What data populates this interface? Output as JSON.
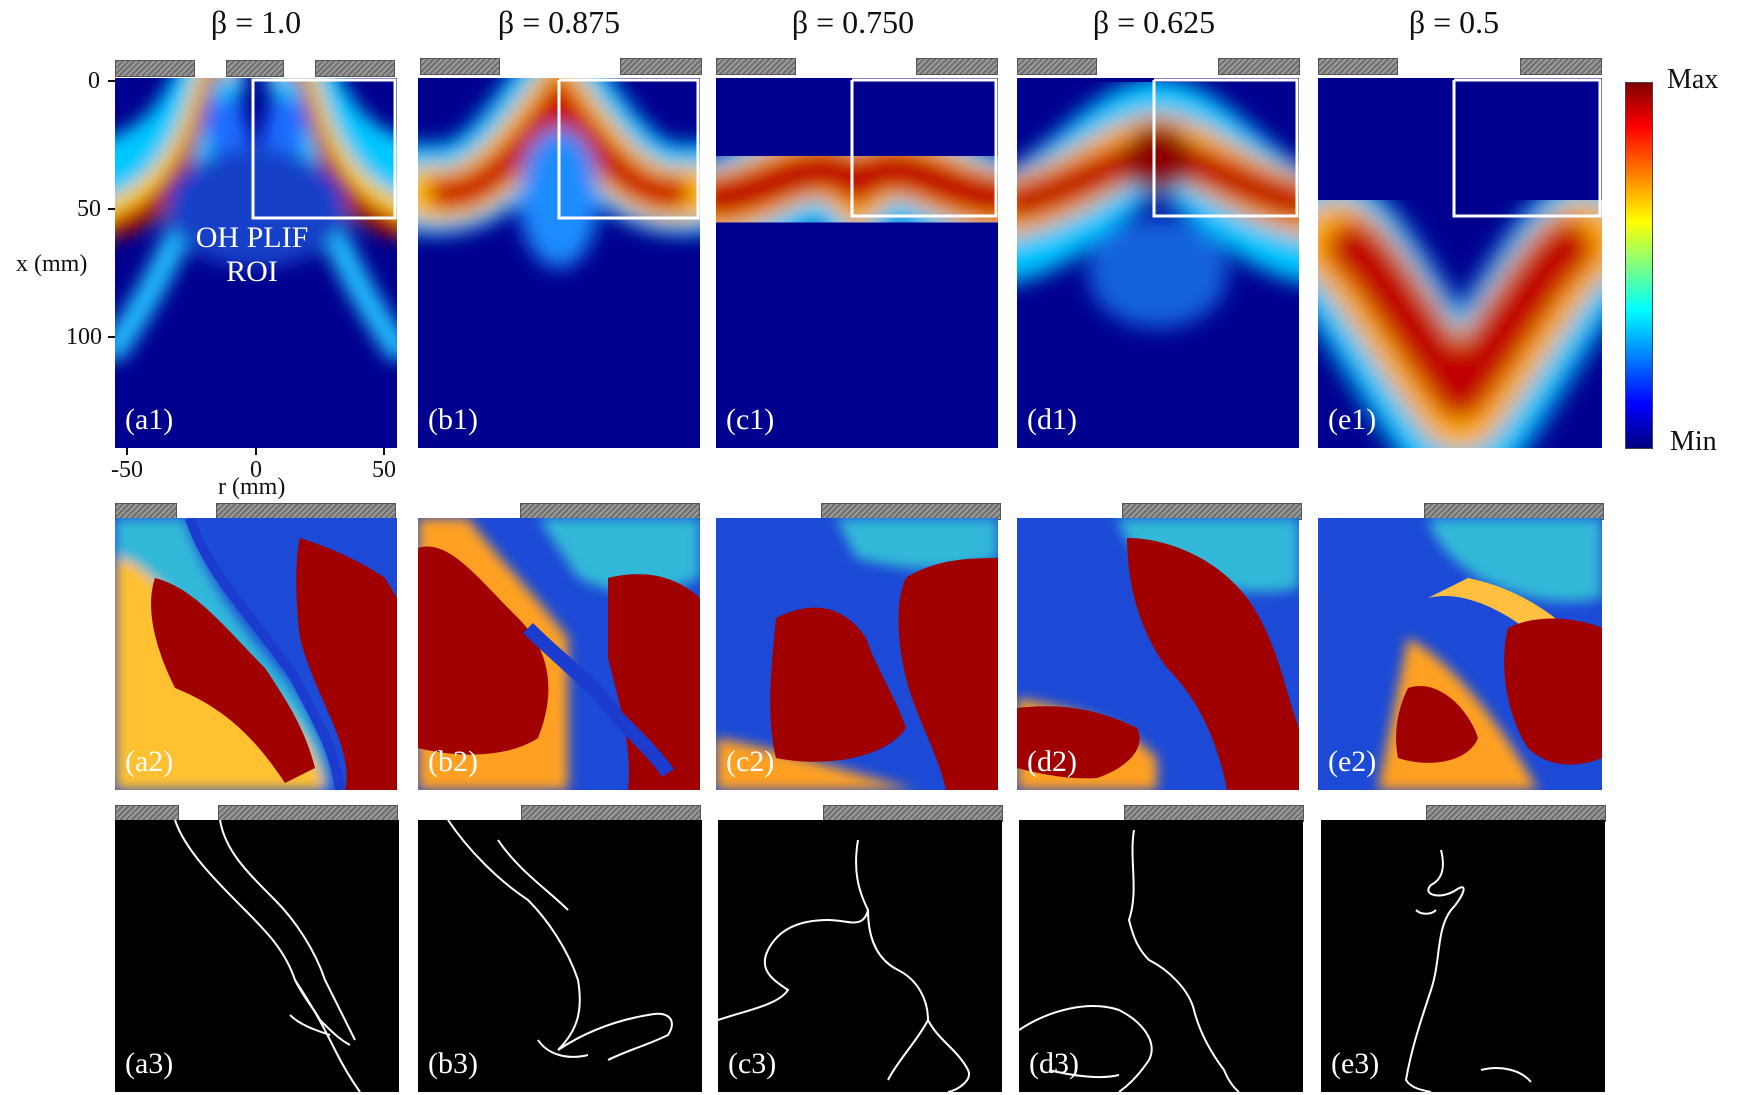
{
  "columns": [
    {
      "title": "β = 1.0",
      "labels": [
        "(a1)",
        "(a2)",
        "(a3)"
      ]
    },
    {
      "title": "β = 0.875",
      "labels": [
        "(b1)",
        "(b2)",
        "(b3)"
      ]
    },
    {
      "title": "β = 0.750",
      "labels": [
        "(c1)",
        "(c2)",
        "(c3)"
      ]
    },
    {
      "title": "β = 0.625",
      "labels": [
        "(d1)",
        "(d2)",
        "(d3)"
      ]
    },
    {
      "title": "β = 0.5",
      "labels": [
        "(e1)",
        "(e2)",
        "(e3)"
      ]
    }
  ],
  "axes": {
    "ylabel": "x (mm)",
    "xlabel": "r (mm)",
    "yticks": [
      "0",
      "50",
      "100"
    ],
    "xticks": [
      "-50",
      "0",
      "50"
    ]
  },
  "roi_label": "OH PLIF\nROI",
  "colorbar": {
    "max_label": "Max",
    "min_label": "Min",
    "colormap": "jet"
  },
  "colors": {
    "background_blue": "#00008e",
    "trace_line": "#ffffff",
    "roi_box": "#ffffff"
  }
}
